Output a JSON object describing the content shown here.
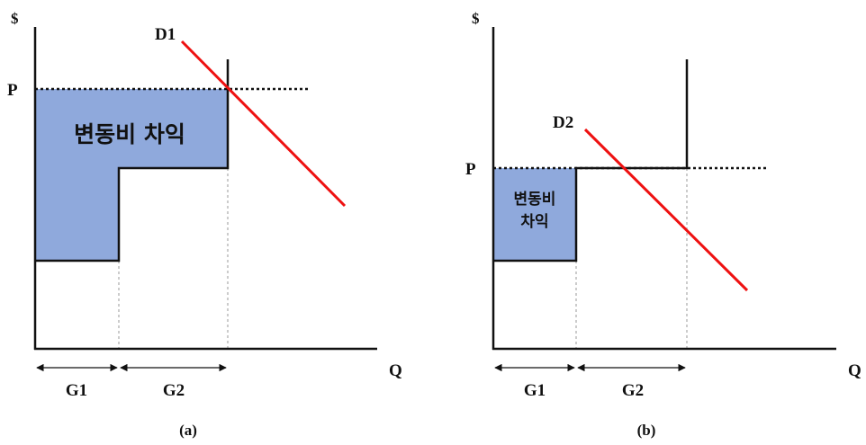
{
  "panel_a": {
    "y_axis_label": "$",
    "x_axis_label": "Q",
    "price_label": "P",
    "demand_label": "D1",
    "area_label": "변동비 차익",
    "gen1_label": "G1",
    "gen2_label": "G2",
    "caption": "(a)"
  },
  "panel_b": {
    "y_axis_label": "$",
    "x_axis_label": "Q",
    "price_label": "P",
    "demand_label": "D2",
    "area_label_line1": "변동비",
    "area_label_line2": "차익",
    "gen1_label": "G1",
    "gen2_label": "G2",
    "caption": "(b)"
  },
  "colors": {
    "area_fill": "#8fa9dc",
    "demand_line": "#ee1111",
    "axis": "#111111",
    "guide": "#bbbbbb"
  }
}
